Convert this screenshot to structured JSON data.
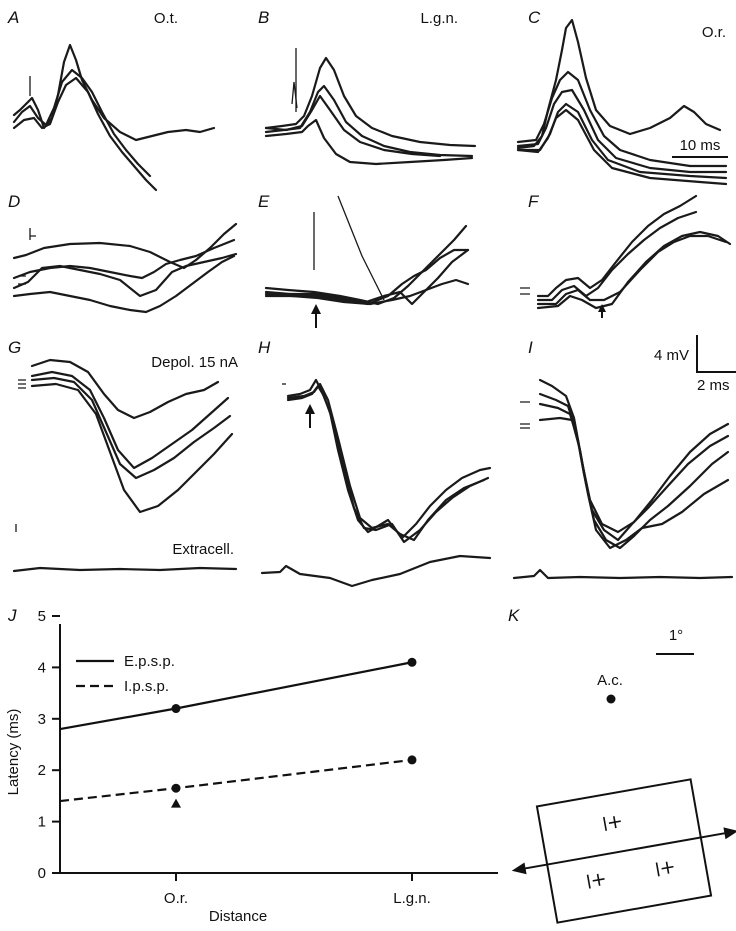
{
  "traces": {
    "A": {
      "letter": "A",
      "label": "O.t."
    },
    "B": {
      "letter": "B",
      "label": "L.g.n."
    },
    "C": {
      "letter": "C",
      "label": "O.r.",
      "scale_label": "10 ms"
    },
    "D": {
      "letter": "D"
    },
    "E": {
      "letter": "E"
    },
    "F": {
      "letter": "F"
    },
    "G": {
      "letter": "G",
      "label": "Depol. 15 nA",
      "extracell_label": "Extracell."
    },
    "H": {
      "letter": "H"
    },
    "I": {
      "letter": "I"
    },
    "scalebar": {
      "v_label": "4 mV",
      "h_label": "2 ms"
    }
  },
  "chart_data": {
    "type": "line",
    "panel": "J",
    "ylabel": "Latency (ms)",
    "xlabel": "Distance",
    "categories": [
      "O.r.",
      "L.g.n."
    ],
    "ylim": [
      0,
      5
    ],
    "yticks": [
      "0",
      "1",
      "2",
      "3",
      "4",
      "5"
    ],
    "legend_position": "top-left",
    "series": [
      {
        "name": "E.p.s.p.",
        "style": "solid",
        "values": [
          3.2,
          4.1
        ],
        "intercept": 2.8
      },
      {
        "name": "I.p.s.p.",
        "style": "dashed",
        "values": [
          1.65,
          2.2
        ],
        "intercept": 1.4
      }
    ],
    "extra_point": {
      "category": "O.r.",
      "value": 1.35,
      "marker": "triangle"
    }
  },
  "diagram_K": {
    "letter": "K",
    "scale_label": "1°",
    "ac_label": "A.c."
  }
}
